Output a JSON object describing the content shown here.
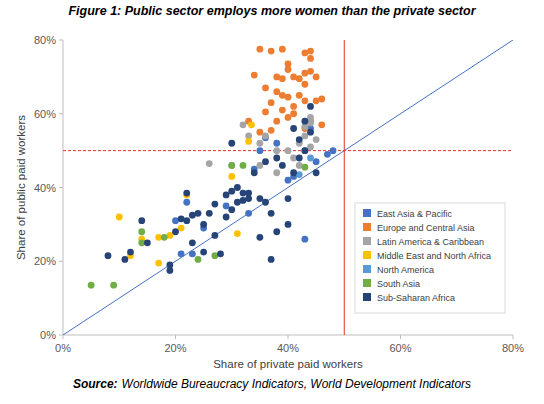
{
  "chart_data": {
    "type": "scatter",
    "title": "Figure 1: Public sector employs more women than the private sector",
    "x_label": "Share of private paid workers",
    "y_label": "Share of public paid workers",
    "source_label": "Source:",
    "source": "Worldwide Bureaucracy Indicators, World Development Indicators",
    "xlim": [
      0,
      80
    ],
    "ylim": [
      0,
      80
    ],
    "xticks": [
      {
        "value": 0,
        "label": "0%"
      },
      {
        "value": 20,
        "label": "20%"
      },
      {
        "value": 40,
        "label": "40%"
      },
      {
        "value": 60,
        "label": "60%"
      },
      {
        "value": 80,
        "label": "80%"
      }
    ],
    "yticks": [
      {
        "value": 0,
        "label": "0%"
      },
      {
        "value": 20,
        "label": "20%"
      },
      {
        "value": 40,
        "label": "40%"
      },
      {
        "value": 60,
        "label": "60%"
      },
      {
        "value": 80,
        "label": "80%"
      }
    ],
    "grid": false,
    "legend": "right",
    "marker": "circle",
    "reference_lines": {
      "x": 50,
      "y": 50
    },
    "diagonal": {
      "x": [
        0,
        80
      ],
      "values": [
        0,
        80
      ]
    },
    "series": [
      {
        "name": "East Asia & Pacific",
        "color": "#4472c4",
        "x": [
          20,
          21,
          23,
          25,
          29,
          34,
          36,
          38,
          41,
          43,
          44,
          45,
          47,
          48,
          22,
          33,
          35,
          40
        ],
        "values": [
          31,
          22,
          22,
          29,
          35,
          45,
          53.5,
          52,
          43,
          26,
          56,
          47,
          49,
          50,
          36,
          33,
          50,
          42
        ]
      },
      {
        "name": "Europe and Central Asia",
        "color": "#ed7d31",
        "x": [
          35,
          37,
          39,
          43,
          44,
          44,
          40,
          40,
          38,
          34,
          39,
          41,
          42,
          43,
          45,
          43,
          44,
          36,
          38,
          39,
          40,
          42,
          37,
          41,
          43,
          45,
          39,
          41,
          36,
          38,
          44,
          46,
          35,
          37,
          43,
          40,
          46,
          33
        ],
        "values": [
          77.5,
          77,
          77.5,
          76.5,
          77,
          75,
          73.5,
          72,
          70,
          70.5,
          69.5,
          70,
          69.5,
          68,
          70,
          71,
          71.5,
          67,
          66,
          65,
          64.5,
          65,
          63,
          62,
          63.5,
          63.5,
          61,
          60,
          60.5,
          58,
          58,
          57,
          55,
          55.5,
          56,
          59,
          64,
          58
        ]
      },
      {
        "name": "Latin America & Caribbean",
        "color": "#a5a5a5",
        "x": [
          26,
          32,
          33,
          35,
          36,
          38,
          40,
          42,
          43,
          43,
          44,
          45,
          44,
          42,
          35,
          43,
          41,
          30,
          44,
          38
        ],
        "values": [
          46.5,
          57,
          54,
          52,
          54,
          50,
          50,
          52,
          54,
          56.5,
          57.5,
          53,
          51,
          46,
          46,
          50,
          48,
          46,
          59,
          44
        ]
      },
      {
        "name": "Middle East and North Africa",
        "color": "#ffc000",
        "x": [
          10,
          12,
          17,
          17,
          19,
          21,
          22,
          31,
          33,
          33.5,
          30,
          14
        ],
        "values": [
          32,
          21.5,
          19.5,
          26.5,
          27,
          29,
          38,
          27.5,
          52.5,
          57,
          43,
          26
        ]
      },
      {
        "name": "North America",
        "color": "#5b9bd5",
        "x": [
          42,
          44
        ],
        "values": [
          43.5,
          48
        ]
      },
      {
        "name": "South Asia",
        "color": "#70ad47",
        "x": [
          5,
          9,
          14,
          18,
          24,
          27,
          30,
          32,
          43,
          14
        ],
        "values": [
          13.5,
          13.5,
          28,
          26.5,
          20.5,
          21.5,
          46,
          46,
          45.5,
          25
        ]
      },
      {
        "name": "Sub-Saharan Africa",
        "color": "#264478",
        "x": [
          8,
          11,
          12,
          14,
          15,
          19,
          19,
          20,
          21,
          22,
          22,
          23,
          23,
          24,
          25,
          25,
          26,
          27,
          27,
          28,
          29,
          29,
          30,
          30,
          30,
          31,
          31,
          32,
          32,
          33,
          33,
          34,
          35,
          35,
          36,
          37,
          37,
          38,
          38,
          40,
          40,
          41,
          42,
          42,
          43,
          44,
          43,
          45,
          44,
          41,
          39,
          36
        ],
        "values": [
          21.5,
          20.5,
          22.5,
          31,
          25,
          19,
          17.5,
          28,
          31.5,
          31,
          38.5,
          25,
          32.5,
          33,
          22.5,
          30,
          33,
          35.5,
          27,
          22,
          32,
          38,
          34,
          39,
          52,
          36,
          40,
          36.5,
          38.5,
          37,
          38.5,
          44,
          26.5,
          37,
          36,
          20.5,
          33,
          48,
          28,
          37,
          30,
          44,
          48,
          53,
          50,
          55,
          58,
          44,
          62,
          56,
          46,
          47
        ]
      }
    ]
  }
}
